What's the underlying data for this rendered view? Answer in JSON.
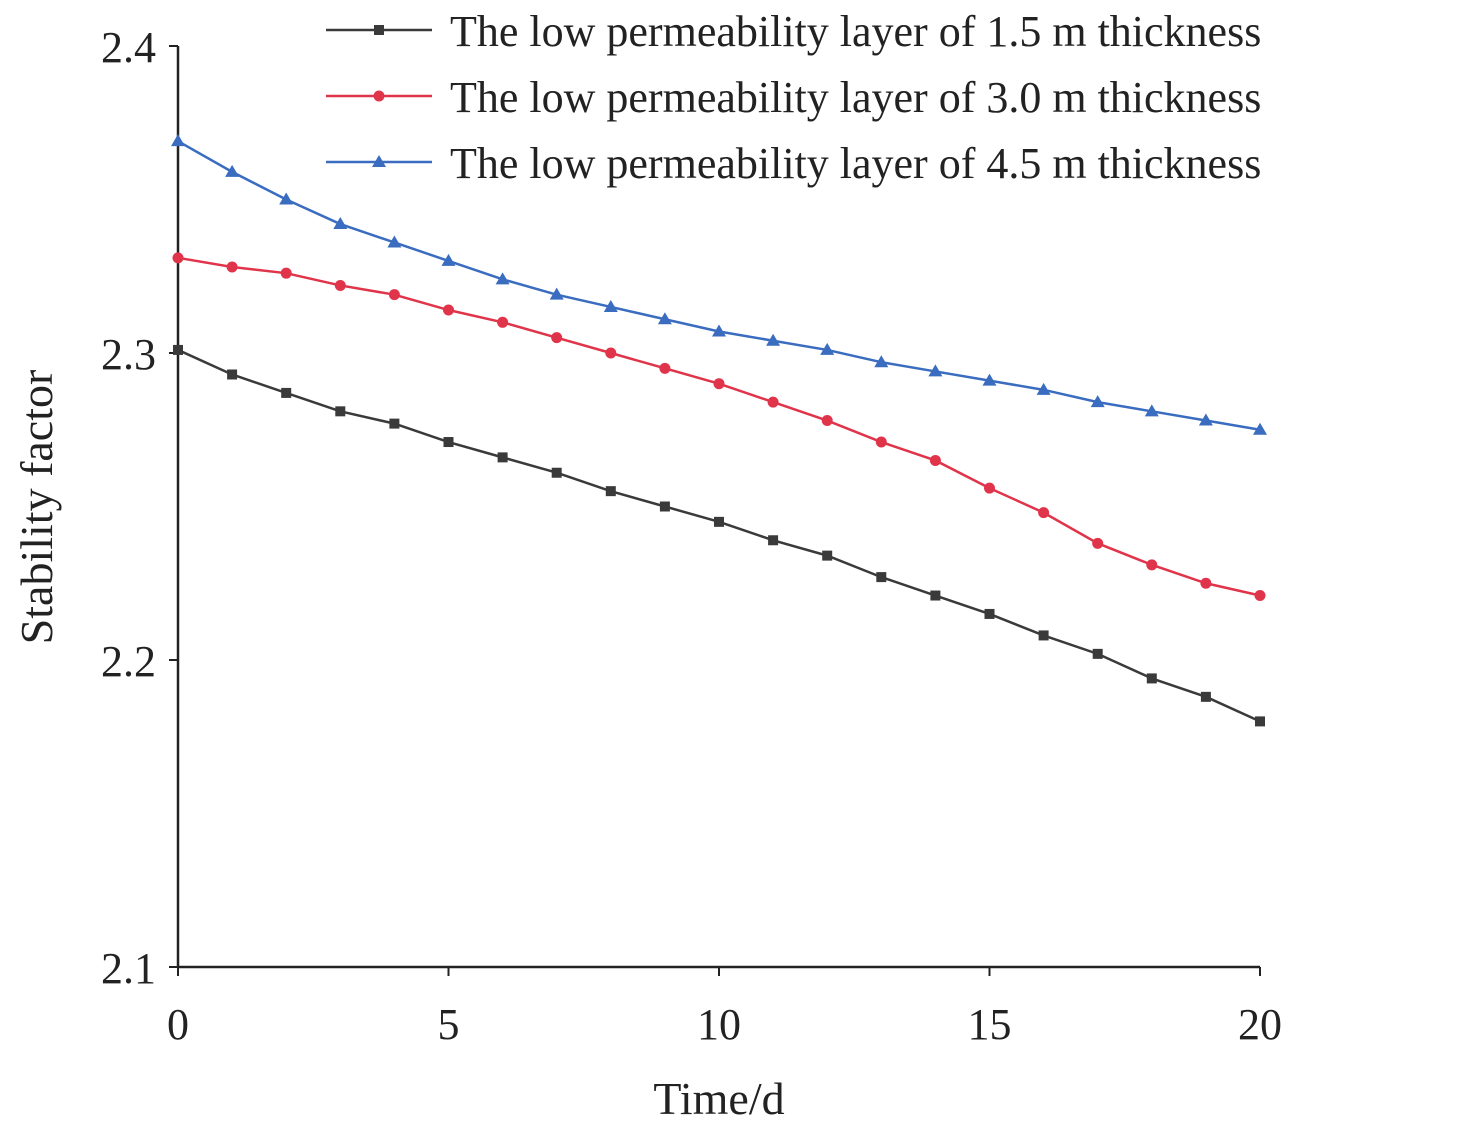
{
  "chart_data": {
    "type": "line",
    "title": "",
    "xlabel": "Time/d",
    "ylabel": "Stability factor",
    "xlim": [
      0,
      20
    ],
    "ylim": [
      2.1,
      2.4
    ],
    "xticks": [
      "0",
      "5",
      "10",
      "15",
      "20"
    ],
    "yticks": [
      "2.1",
      "2.2",
      "2.3",
      "2.4"
    ],
    "grid": false,
    "legend_position": "top-right",
    "x": [
      0,
      1,
      2,
      3,
      4,
      5,
      6,
      7,
      8,
      9,
      10,
      11,
      12,
      13,
      14,
      15,
      16,
      17,
      18,
      19,
      20
    ],
    "series": [
      {
        "name": "The low permeability layer of 1.5 m thickness",
        "color": "#3a3a3a",
        "marker": "square",
        "values": [
          2.301,
          2.293,
          2.287,
          2.281,
          2.277,
          2.271,
          2.266,
          2.261,
          2.255,
          2.25,
          2.245,
          2.239,
          2.234,
          2.227,
          2.221,
          2.215,
          2.208,
          2.202,
          2.194,
          2.188,
          2.18
        ]
      },
      {
        "name": "The low permeability layer of 3.0 m thickness",
        "color": "#e0344a",
        "marker": "circle",
        "values": [
          2.331,
          2.328,
          2.326,
          2.322,
          2.319,
          2.314,
          2.31,
          2.305,
          2.3,
          2.295,
          2.29,
          2.284,
          2.278,
          2.271,
          2.265,
          2.256,
          2.248,
          2.238,
          2.231,
          2.225,
          2.221
        ]
      },
      {
        "name": "The low permeability layer of 4.5 m thickness",
        "color": "#3a6cc0",
        "marker": "triangle",
        "values": [
          2.369,
          2.359,
          2.35,
          2.342,
          2.336,
          2.33,
          2.324,
          2.319,
          2.315,
          2.311,
          2.307,
          2.304,
          2.301,
          2.297,
          2.294,
          2.291,
          2.288,
          2.284,
          2.281,
          2.278,
          2.275
        ]
      }
    ]
  }
}
